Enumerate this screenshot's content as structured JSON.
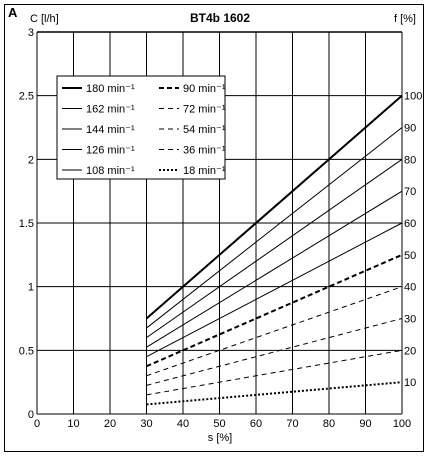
{
  "panel_label": "A",
  "chart_data": {
    "type": "line",
    "title": "BT4b 1602",
    "ylabel": "C [l/h]",
    "xlabel": "s [%]",
    "right_axis_label": "f [%]",
    "xlim": [
      0,
      100
    ],
    "ylim": [
      0,
      3
    ],
    "x_ticks": [
      "0",
      "10",
      "20",
      "30",
      "40",
      "50",
      "60",
      "70",
      "80",
      "90",
      "100"
    ],
    "y_ticks": [
      "0",
      "0.5",
      "1",
      "1.5",
      "2",
      "2.5",
      "3"
    ],
    "right_ticks": [
      "10",
      "20",
      "30",
      "40",
      "50",
      "60",
      "70",
      "80",
      "90",
      "100"
    ],
    "right_tick_values": [
      0.25,
      0.5,
      0.75,
      1.0,
      1.25,
      1.5,
      1.75,
      2.0,
      2.25,
      2.5
    ],
    "grid": true,
    "legend_position": "top-left",
    "x": [
      30,
      100
    ],
    "series": [
      {
        "name": "180 min⁻¹",
        "style": "solid-thick",
        "values": [
          0.75,
          2.5
        ]
      },
      {
        "name": "162 min⁻¹",
        "style": "solid",
        "values": [
          0.675,
          2.25
        ]
      },
      {
        "name": "144 min⁻¹",
        "style": "solid",
        "values": [
          0.6,
          2.0
        ]
      },
      {
        "name": "126 min⁻¹",
        "style": "solid",
        "values": [
          0.525,
          1.75
        ]
      },
      {
        "name": "108 min⁻¹",
        "style": "solid",
        "values": [
          0.45,
          1.5
        ]
      },
      {
        "name": "90 min⁻¹",
        "style": "dashed-thick",
        "values": [
          0.375,
          1.25
        ]
      },
      {
        "name": "72 min⁻¹",
        "style": "dashed",
        "values": [
          0.3,
          1.0
        ]
      },
      {
        "name": "54 min⁻¹",
        "style": "dashed",
        "values": [
          0.225,
          0.75
        ]
      },
      {
        "name": "36 min⁻¹",
        "style": "dashed",
        "values": [
          0.15,
          0.5
        ]
      },
      {
        "name": "18 min⁻¹",
        "style": "dotted-thick",
        "values": [
          0.075,
          0.25
        ]
      }
    ]
  }
}
